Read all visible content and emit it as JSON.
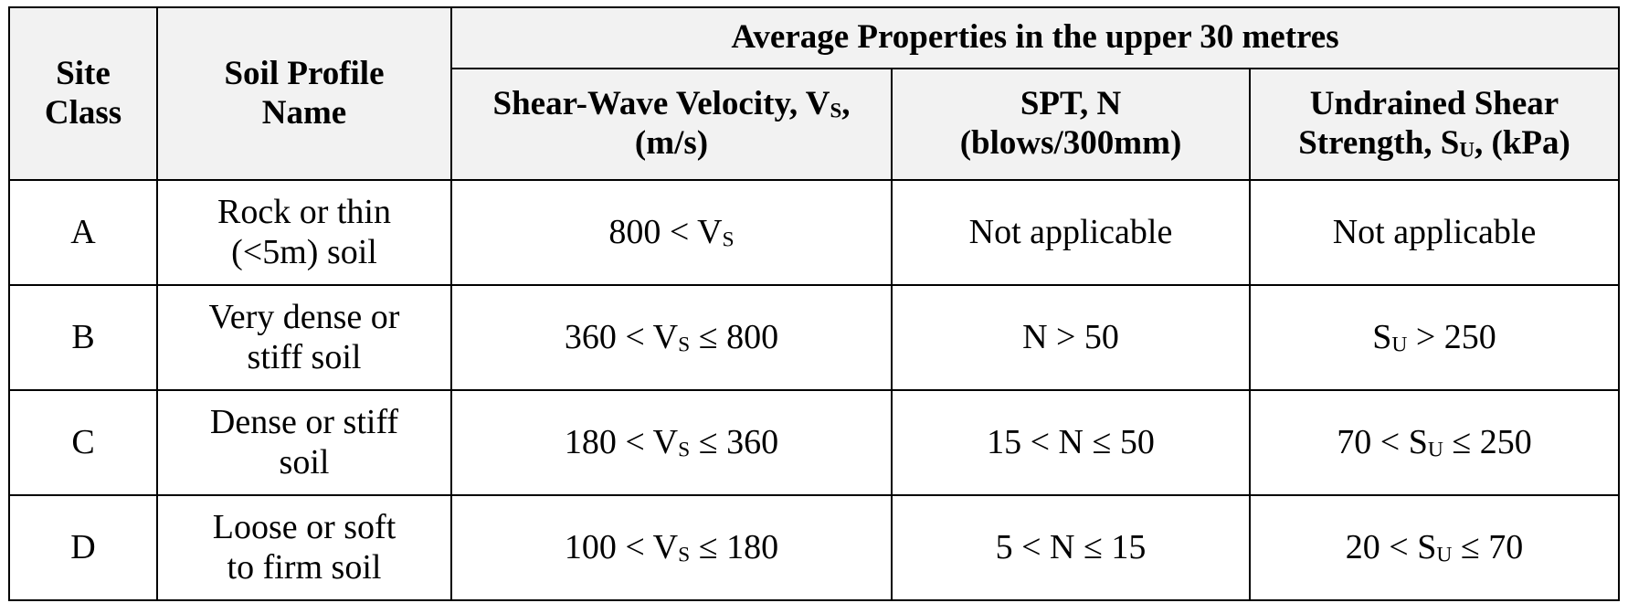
{
  "table": {
    "header": {
      "site_class": "Site Class",
      "soil_profile": "Soil Profile Name",
      "group": "Average Properties in the upper 30 metres",
      "columns": [
        [
          "Shear-Wave Velocity, V",
          "S",
          ", (m/s)"
        ],
        [
          "SPT, N (blows/300mm)"
        ],
        [
          "Undrained Shear Strength, S",
          "U",
          ", (kPa)"
        ]
      ]
    },
    "rows": [
      [
        [
          "A"
        ],
        [
          "Rock or thin (<5m) soil"
        ],
        [
          "800 < V",
          "S"
        ],
        [
          "Not applicable"
        ],
        [
          "Not applicable"
        ]
      ],
      [
        [
          "B"
        ],
        [
          "Very dense or stiff soil"
        ],
        [
          "360 < V",
          "S",
          " ≤ 800"
        ],
        [
          "N > 50"
        ],
        [
          "S",
          "U",
          " > 250"
        ]
      ],
      [
        [
          "C"
        ],
        [
          "Dense or stiff soil"
        ],
        [
          "180 < V",
          "S",
          " ≤ 360"
        ],
        [
          "15 < N ≤ 50"
        ],
        [
          "70 < S",
          "U",
          " ≤ 250"
        ]
      ],
      [
        [
          "D"
        ],
        [
          "Loose or soft to firm soil"
        ],
        [
          "100 < V",
          "S",
          " ≤ 180"
        ],
        [
          "5 < N ≤ 15"
        ],
        [
          "20 < S",
          "U",
          " ≤ 70"
        ]
      ]
    ]
  }
}
